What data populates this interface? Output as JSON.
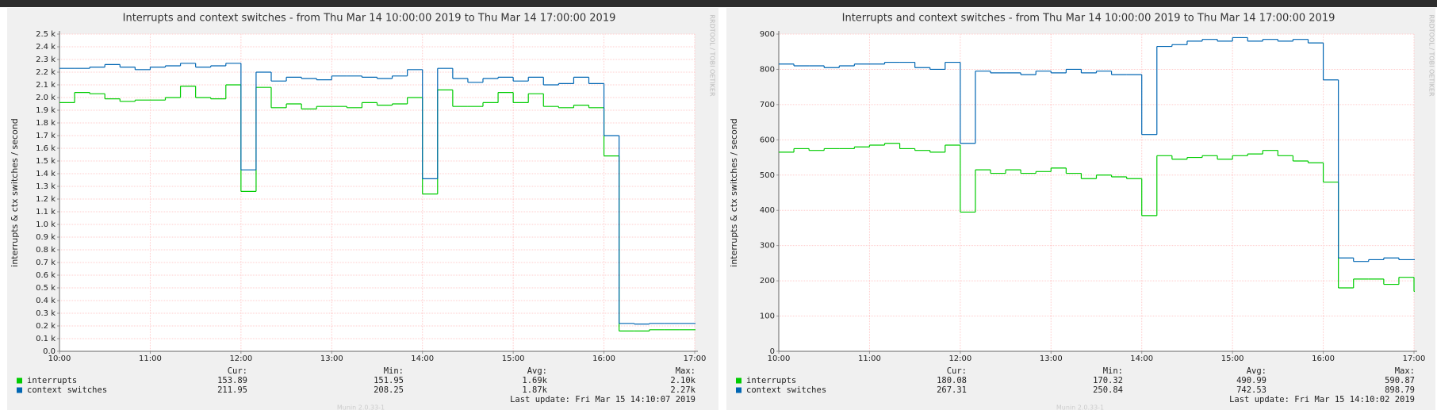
{
  "chart_data": [
    {
      "type": "line",
      "title": "Interrupts and context switches - from Thu Mar 14 10:00:00 2019 to Thu Mar 14 17:00:00 2019",
      "y_label": "interrupts & ctx switches / second",
      "side_text": "RRDTOOL / TOBI OETIKER",
      "footer": "Munin 2.0.33-1",
      "last_update": "Last update: Fri Mar 15 14:10:07 2019",
      "stats_headers": [
        "Cur:",
        "Min:",
        "Avg:",
        "Max:"
      ],
      "x": [
        "10:00",
        "10:10",
        "10:20",
        "10:30",
        "10:40",
        "10:50",
        "11:00",
        "11:10",
        "11:20",
        "11:30",
        "11:40",
        "11:50",
        "12:00",
        "12:10",
        "12:20",
        "12:30",
        "12:40",
        "12:50",
        "13:00",
        "13:10",
        "13:20",
        "13:30",
        "13:40",
        "13:50",
        "14:00",
        "14:10",
        "14:20",
        "14:30",
        "14:40",
        "14:50",
        "15:00",
        "15:10",
        "15:20",
        "15:30",
        "15:40",
        "15:50",
        "16:00",
        "16:10",
        "16:20",
        "16:30",
        "16:40",
        "16:50",
        "17:00"
      ],
      "xlim": [
        "10:00",
        "17:00"
      ],
      "xticks": [
        "10:00",
        "11:00",
        "12:00",
        "13:00",
        "14:00",
        "15:00",
        "16:00",
        "17:00"
      ],
      "ylim": [
        0,
        2500
      ],
      "yticks": [
        {
          "value": 0,
          "label": "0.0"
        },
        {
          "value": 100,
          "label": "0.1 k"
        },
        {
          "value": 200,
          "label": "0.2 k"
        },
        {
          "value": 300,
          "label": "0.3 k"
        },
        {
          "value": 400,
          "label": "0.4 k"
        },
        {
          "value": 500,
          "label": "0.5 k"
        },
        {
          "value": 600,
          "label": "0.6 k"
        },
        {
          "value": 700,
          "label": "0.7 k"
        },
        {
          "value": 800,
          "label": "0.8 k"
        },
        {
          "value": 900,
          "label": "0.9 k"
        },
        {
          "value": 1000,
          "label": "1.0 k"
        },
        {
          "value": 1100,
          "label": "1.1 k"
        },
        {
          "value": 1200,
          "label": "1.2 k"
        },
        {
          "value": 1300,
          "label": "1.3 k"
        },
        {
          "value": 1400,
          "label": "1.4 k"
        },
        {
          "value": 1500,
          "label": "1.5 k"
        },
        {
          "value": 1600,
          "label": "1.6 k"
        },
        {
          "value": 1700,
          "label": "1.7 k"
        },
        {
          "value": 1800,
          "label": "1.8 k"
        },
        {
          "value": 1900,
          "label": "1.9 k"
        },
        {
          "value": 2000,
          "label": "2.0 k"
        },
        {
          "value": 2100,
          "label": "2.1 k"
        },
        {
          "value": 2200,
          "label": "2.2 k"
        },
        {
          "value": 2300,
          "label": "2.3 k"
        },
        {
          "value": 2400,
          "label": "2.4 k"
        },
        {
          "value": 2500,
          "label": "2.5 k"
        }
      ],
      "grid": true,
      "series": [
        {
          "name": "interrupts",
          "color": "#00cc00",
          "stats": [
            "153.89",
            "151.95",
            "1.69k",
            "2.10k"
          ],
          "values": [
            1960,
            2040,
            2030,
            1990,
            1970,
            1980,
            1980,
            2000,
            2090,
            2000,
            1990,
            2100,
            1260,
            2080,
            1920,
            1950,
            1910,
            1930,
            1930,
            1920,
            1960,
            1940,
            1950,
            2000,
            1240,
            2060,
            1930,
            1930,
            1960,
            2040,
            1960,
            2030,
            1930,
            1920,
            1940,
            1920,
            1540,
            160,
            160,
            170,
            170,
            170,
            170
          ]
        },
        {
          "name": "context switches",
          "color": "#0066b3",
          "stats": [
            "211.95",
            "208.25",
            "1.87k",
            "2.27k"
          ],
          "values": [
            2230,
            2230,
            2240,
            2260,
            2240,
            2220,
            2240,
            2250,
            2270,
            2240,
            2250,
            2270,
            1430,
            2200,
            2130,
            2160,
            2150,
            2140,
            2170,
            2170,
            2160,
            2150,
            2170,
            2220,
            1360,
            2230,
            2150,
            2120,
            2150,
            2160,
            2130,
            2160,
            2100,
            2110,
            2160,
            2110,
            1700,
            220,
            215,
            220,
            220,
            220,
            220
          ]
        }
      ]
    },
    {
      "type": "line",
      "title": "Interrupts and context switches - from Thu Mar 14 10:00:00 2019 to Thu Mar 14 17:00:00 2019",
      "y_label": "interrupts & ctx switches / second",
      "side_text": "RRDTOOL / TOBI OETIKER",
      "footer": "Munin 2.0.33-1",
      "last_update": "Last update: Fri Mar 15 14:10:02 2019",
      "stats_headers": [
        "Cur:",
        "Min:",
        "Avg:",
        "Max:"
      ],
      "x": [
        "10:00",
        "10:10",
        "10:20",
        "10:30",
        "10:40",
        "10:50",
        "11:00",
        "11:10",
        "11:20",
        "11:30",
        "11:40",
        "11:50",
        "12:00",
        "12:10",
        "12:20",
        "12:30",
        "12:40",
        "12:50",
        "13:00",
        "13:10",
        "13:20",
        "13:30",
        "13:40",
        "13:50",
        "14:00",
        "14:10",
        "14:20",
        "14:30",
        "14:40",
        "14:50",
        "15:00",
        "15:10",
        "15:20",
        "15:30",
        "15:40",
        "15:50",
        "16:00",
        "16:10",
        "16:20",
        "16:30",
        "16:40",
        "16:50",
        "17:00"
      ],
      "xlim": [
        "10:00",
        "17:00"
      ],
      "xticks": [
        "10:00",
        "11:00",
        "12:00",
        "13:00",
        "14:00",
        "15:00",
        "16:00",
        "17:00"
      ],
      "ylim": [
        0,
        900
      ],
      "yticks": [
        0,
        100,
        200,
        300,
        400,
        500,
        600,
        700,
        800,
        900
      ],
      "grid": true,
      "series": [
        {
          "name": "interrupts",
          "color": "#00cc00",
          "stats": [
            "180.08",
            "170.32",
            "490.99",
            "590.87"
          ],
          "values": [
            565,
            575,
            570,
            575,
            575,
            580,
            585,
            590,
            575,
            570,
            565,
            585,
            395,
            515,
            505,
            515,
            505,
            510,
            520,
            505,
            490,
            500,
            495,
            490,
            385,
            555,
            545,
            550,
            555,
            545,
            555,
            560,
            570,
            555,
            540,
            535,
            480,
            180,
            205,
            205,
            190,
            210,
            170
          ]
        },
        {
          "name": "context switches",
          "color": "#0066b3",
          "stats": [
            "267.31",
            "250.84",
            "742.53",
            "898.79"
          ],
          "values": [
            815,
            810,
            810,
            805,
            810,
            815,
            815,
            820,
            820,
            805,
            800,
            820,
            590,
            795,
            790,
            790,
            785,
            795,
            790,
            800,
            790,
            795,
            785,
            785,
            615,
            865,
            870,
            880,
            885,
            880,
            890,
            880,
            885,
            880,
            885,
            875,
            770,
            265,
            255,
            260,
            265,
            260,
            260
          ]
        }
      ]
    }
  ]
}
